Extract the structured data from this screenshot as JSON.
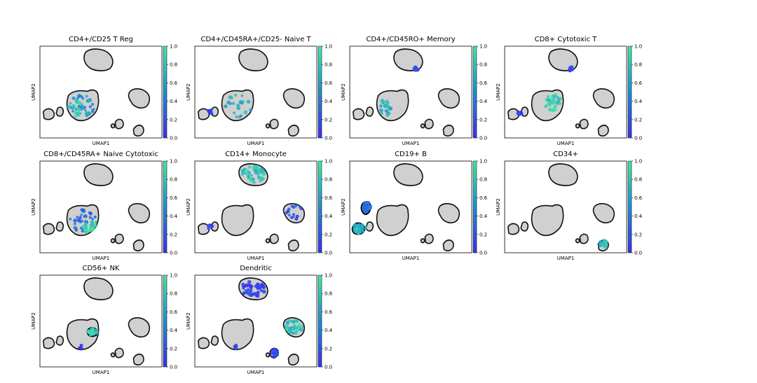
{
  "figure": {
    "colorscale": {
      "low": "#3b2ff0",
      "mid": "#1e8fd0",
      "high": "#45e6a6",
      "background": "#d0d0d0",
      "outline": "#111111"
    }
  },
  "chart_data": [
    {
      "type": "scatter",
      "title": "CD4+/CD25 T Reg",
      "xlabel": "UMAP1",
      "ylabel": "UMAP2",
      "colorbar": {
        "range": [
          0.0,
          1.0
        ],
        "ticks": [
          "0.0",
          "0.2",
          "0.4",
          "0.6",
          "0.8",
          "1.0"
        ]
      },
      "highlights": [
        {
          "cluster": "tcell",
          "level": 0.55,
          "fraction": 0.5
        },
        {
          "cluster": "tcell_left",
          "level": 0.8,
          "fraction": 0.4
        }
      ]
    },
    {
      "type": "scatter",
      "title": "CD4+/CD45RA+/CD25- Naive T",
      "xlabel": "UMAP1",
      "ylabel": "UMAP2",
      "colorbar": {
        "range": [
          0.0,
          1.0
        ],
        "ticks": [
          "0.0",
          "0.2",
          "0.4",
          "0.6",
          "0.8",
          "1.0"
        ]
      },
      "highlights": [
        {
          "cluster": "tcell",
          "level": 0.65,
          "fraction": 0.3
        },
        {
          "cluster": "smallA",
          "level": 0.1,
          "fraction": 0.6
        }
      ]
    },
    {
      "type": "scatter",
      "title": "CD4+/CD45RO+ Memory",
      "xlabel": "UMAP1",
      "ylabel": "UMAP2",
      "colorbar": {
        "range": [
          0.0,
          1.0
        ],
        "ticks": [
          "0.0",
          "0.2",
          "0.4",
          "0.6",
          "0.8",
          "1.0"
        ]
      },
      "highlights": [
        {
          "cluster": "tcell_left",
          "level": 0.7,
          "fraction": 0.6
        },
        {
          "cluster": "mono_tip",
          "level": 0.05,
          "fraction": 1.0
        }
      ]
    },
    {
      "type": "scatter",
      "title": "CD8+ Cytotoxic T",
      "xlabel": "UMAP1",
      "ylabel": "UMAP2",
      "colorbar": {
        "range": [
          0.0,
          1.0
        ],
        "ticks": [
          "0.0",
          "0.2",
          "0.4",
          "0.6",
          "0.8",
          "1.0"
        ]
      },
      "highlights": [
        {
          "cluster": "tcell_right",
          "level": 0.85,
          "fraction": 0.75
        },
        {
          "cluster": "mono_tip",
          "level": 0.05,
          "fraction": 1.0
        },
        {
          "cluster": "smallA",
          "level": 0.05,
          "fraction": 0.5
        }
      ]
    },
    {
      "type": "scatter",
      "title": "CD8+/CD45RA+ Naive Cytotoxic",
      "xlabel": "UMAP1",
      "ylabel": "UMAP2",
      "colorbar": {
        "range": [
          0.0,
          1.0
        ],
        "ticks": [
          "0.0",
          "0.2",
          "0.4",
          "0.6",
          "0.8",
          "1.0"
        ]
      },
      "highlights": [
        {
          "cluster": "tcell",
          "level": 0.35,
          "fraction": 0.45
        },
        {
          "cluster": "tcell_lower_right",
          "level": 0.9,
          "fraction": 0.8
        }
      ]
    },
    {
      "type": "scatter",
      "title": "CD14+ Monocyte",
      "xlabel": "UMAP1",
      "ylabel": "UMAP2",
      "colorbar": {
        "range": [
          0.0,
          1.0
        ],
        "ticks": [
          "0.0",
          "0.2",
          "0.4",
          "0.6",
          "0.8",
          "1.0"
        ]
      },
      "highlights": [
        {
          "cluster": "mono",
          "level": 0.8,
          "fraction": 1.0
        },
        {
          "cluster": "dc",
          "level": 0.2,
          "fraction": 0.4
        },
        {
          "cluster": "smallA",
          "level": 0.1,
          "fraction": 0.6
        }
      ]
    },
    {
      "type": "scatter",
      "title": "CD19+ B",
      "xlabel": "UMAP1",
      "ylabel": "UMAP2",
      "colorbar": {
        "range": [
          0.0,
          1.0
        ],
        "ticks": [
          "0.0",
          "0.2",
          "0.4",
          "0.6",
          "0.8",
          "1.0"
        ]
      },
      "highlights": [
        {
          "cluster": "bcell_upper",
          "level": 0.35,
          "fraction": 1.0
        },
        {
          "cluster": "bcell_lower",
          "level": 0.7,
          "fraction": 1.0
        }
      ]
    },
    {
      "type": "scatter",
      "title": "CD34+",
      "xlabel": "UMAP1",
      "ylabel": "UMAP2",
      "colorbar": {
        "range": [
          0.0,
          1.0
        ],
        "ticks": [
          "0.0",
          "0.2",
          "0.4",
          "0.6",
          "0.8",
          "1.0"
        ]
      },
      "highlights": [
        {
          "cluster": "cd34",
          "level": 0.8,
          "fraction": 1.0
        }
      ]
    },
    {
      "type": "scatter",
      "title": "CD56+ NK",
      "xlabel": "UMAP1",
      "ylabel": "UMAP2",
      "colorbar": {
        "range": [
          0.0,
          1.0
        ],
        "ticks": [
          "0.0",
          "0.2",
          "0.4",
          "0.6",
          "0.8",
          "1.0"
        ]
      },
      "highlights": [
        {
          "cluster": "nk",
          "level": 0.8,
          "fraction": 1.0
        },
        {
          "cluster": "tcell_low",
          "level": 0.1,
          "fraction": 0.3
        }
      ]
    },
    {
      "type": "scatter",
      "title": "Dendritic",
      "xlabel": "UMAP1",
      "ylabel": "UMAP2",
      "colorbar": {
        "range": [
          0.0,
          1.0
        ],
        "ticks": [
          "0.0",
          "0.2",
          "0.4",
          "0.6",
          "0.8",
          "1.0"
        ]
      },
      "highlights": [
        {
          "cluster": "mono",
          "level": 0.1,
          "fraction": 0.9
        },
        {
          "cluster": "dc",
          "level": 0.8,
          "fraction": 1.0
        },
        {
          "cluster": "pdc",
          "level": 0.15,
          "fraction": 1.0
        },
        {
          "cluster": "tcell_low",
          "level": 0.05,
          "fraction": 0.2
        }
      ]
    }
  ]
}
